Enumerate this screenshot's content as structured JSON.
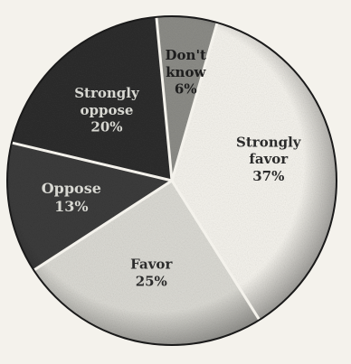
{
  "chart_data": {
    "type": "pie",
    "slices": [
      {
        "label": "Strongly favor",
        "label_lines": [
          "Strongly",
          "favor"
        ],
        "value": 37,
        "value_text": "37%",
        "color": "#f6f4ee",
        "text_color": "#2b2b2b"
      },
      {
        "label": "Favor",
        "label_lines": [
          "Favor"
        ],
        "value": 25,
        "value_text": "25%",
        "color": "#dcdbd5",
        "text_color": "#2b2b2b"
      },
      {
        "label": "Oppose",
        "label_lines": [
          "Oppose"
        ],
        "value": 13,
        "value_text": "13%",
        "color": "#3c3c3c",
        "text_color": "#d8d8d2"
      },
      {
        "label": "Strongly oppose",
        "label_lines": [
          "Strongly",
          "oppose"
        ],
        "value": 20,
        "value_text": "20%",
        "color": "#2e2e2e",
        "text_color": "#d8d8d2"
      },
      {
        "label": "Don't know",
        "label_lines": [
          "Don't",
          "know"
        ],
        "value": 6,
        "value_text": "6%",
        "color": "#8d8d88",
        "text_color": "#1e1e1e"
      }
    ],
    "start_angle_deg": 16,
    "direction": "clockwise"
  },
  "colors": {
    "page_background": "#f4f2ec",
    "separator": "#f4f2ec",
    "outline": "#1a1a1a"
  }
}
